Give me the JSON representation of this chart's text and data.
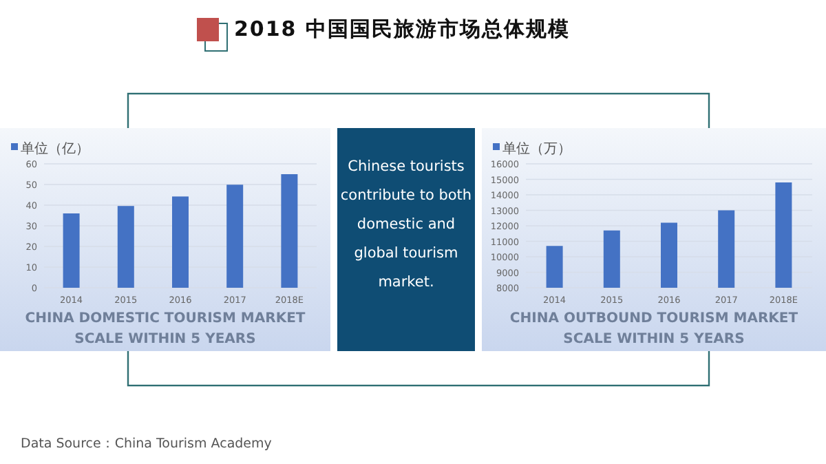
{
  "chart_data": [
    {
      "type": "other",
      "title": "2018 中国国民旅游市场总体规模",
      "annotations": [
        "Data Source：China Tourism Academy"
      ]
    },
    {
      "type": "bar",
      "title": "CHINA DOMESTIC TOURISM MARKET SCALE WITHIN 5 YEARS",
      "categories": [
        "2014",
        "2015",
        "2016",
        "2017",
        "2018E"
      ],
      "series": [
        {
          "name": "单位（亿）",
          "color": "#4472c4",
          "values": [
            36,
            39.6,
            44.2,
            49.9,
            55
          ]
        }
      ],
      "ylim": [
        0,
        60
      ],
      "yticks": [
        0,
        10,
        20,
        30,
        40,
        50,
        60
      ],
      "grid": "y",
      "legend": "top left"
    },
    {
      "type": "other",
      "annotations": [
        "Chinese tourists contribute to both domestic and global tourism market."
      ]
    },
    {
      "type": "bar",
      "title": "CHINA OUTBOUND TOURISM MARKET SCALE WITHIN 5 YEARS",
      "categories": [
        "2014",
        "2015",
        "2016",
        "2017",
        "2018E"
      ],
      "series": [
        {
          "name": "单位（万）",
          "color": "#4472c4",
          "values": [
            10700,
            11700,
            12200,
            13000,
            14800
          ]
        }
      ],
      "ylim": [
        8000,
        16000
      ],
      "yticks": [
        8000,
        9000,
        10000,
        11000,
        12000,
        13000,
        14000,
        15000,
        16000
      ],
      "grid": "y",
      "legend": "top left"
    }
  ]
}
